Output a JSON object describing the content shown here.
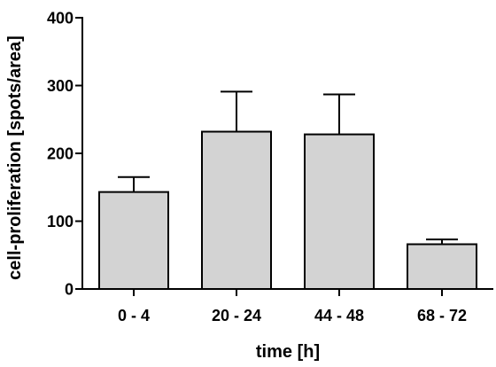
{
  "chart_data": {
    "type": "bar",
    "title": "",
    "xlabel": "time [h]",
    "ylabel": "cell-proliferation [spots/area]",
    "categories": [
      "0 - 4",
      "20 - 24",
      "44 - 48",
      "68 - 72"
    ],
    "values": [
      143,
      232,
      228,
      66
    ],
    "error_upper": [
      22,
      59,
      59,
      7
    ],
    "ylim": [
      0,
      400
    ],
    "yticks": [
      "0",
      "100",
      "200",
      "300",
      "400"
    ],
    "grid": false,
    "legend": "none",
    "colors": {
      "bar_fill": "#d3d3d3",
      "bar_stroke": "#000000",
      "axis": "#000000"
    }
  }
}
